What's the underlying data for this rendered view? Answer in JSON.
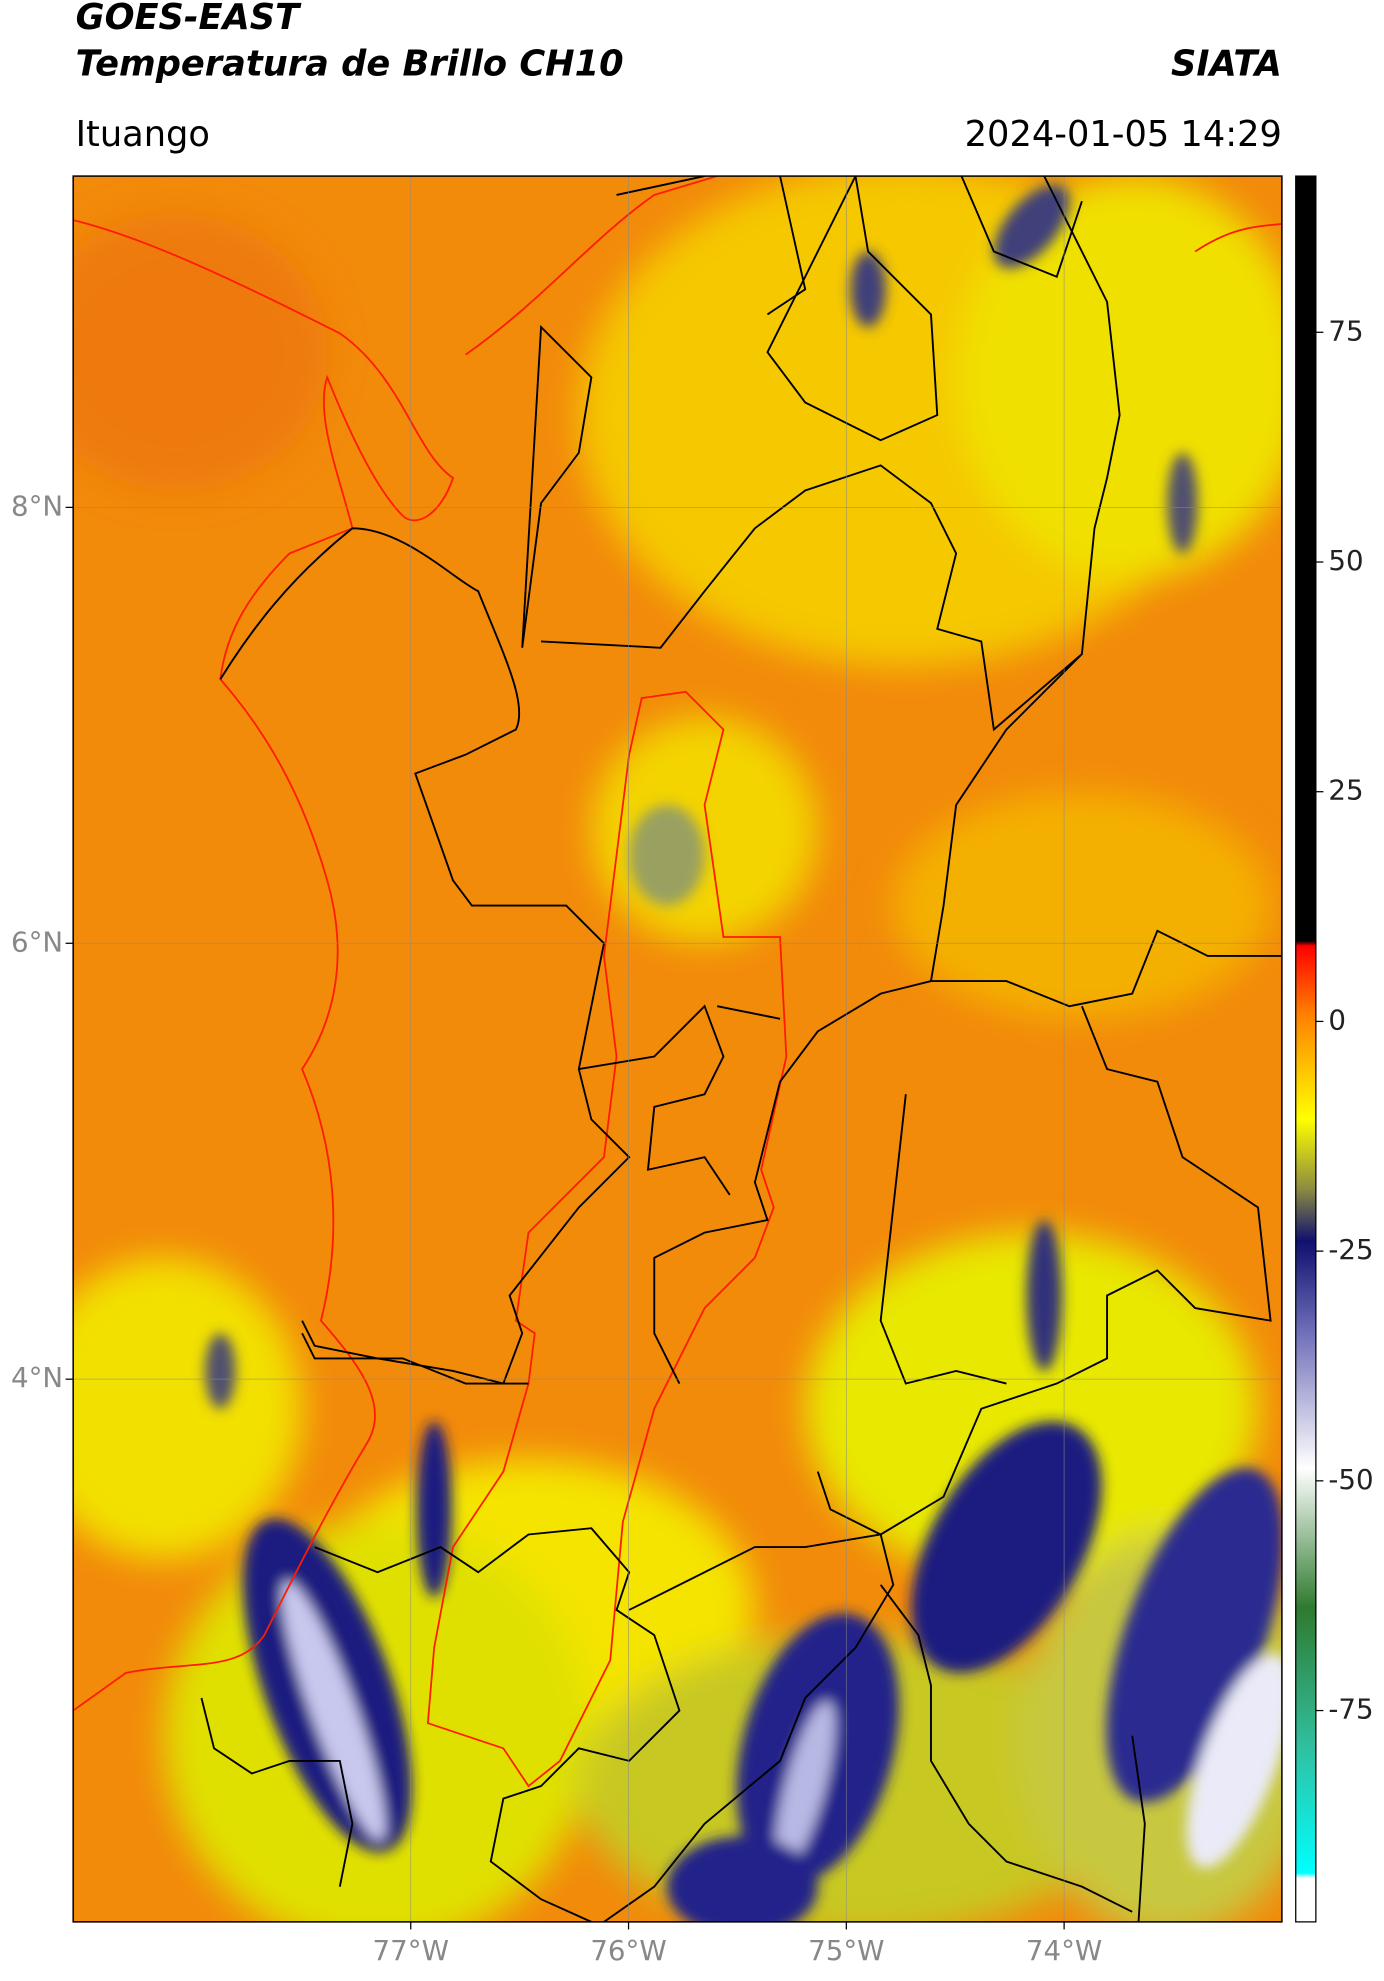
{
  "header": {
    "title": "GOES-EAST",
    "product": "Temperatura de Brillo CH10",
    "organization": "SIATA",
    "location": "Ituango",
    "datetime": "2024-01-05 14:29"
  },
  "map": {
    "xlim": [
      -78.55,
      -73.0
    ],
    "ylim": [
      1.51,
      9.52
    ],
    "xticks": [
      {
        "value": -77,
        "label": "77°W"
      },
      {
        "value": -76,
        "label": "76°W"
      },
      {
        "value": -75,
        "label": "75°W"
      },
      {
        "value": -74,
        "label": "74°W"
      }
    ],
    "yticks": [
      {
        "value": 4,
        "label": "4°N"
      },
      {
        "value": 6,
        "label": "6°N"
      },
      {
        "value": 8,
        "label": "8°N"
      }
    ]
  },
  "colorbar": {
    "lim": [
      -98,
      92
    ],
    "ticks": [
      -75,
      -50,
      -25,
      0,
      25,
      50,
      75
    ]
  }
}
